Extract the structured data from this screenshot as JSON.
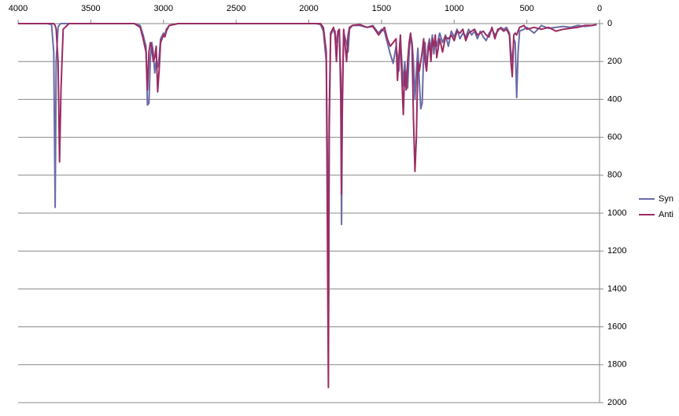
{
  "chart_data": {
    "type": "line",
    "x": [
      4000,
      3800,
      3770,
      3755,
      3745,
      3738,
      3725,
      3715,
      3705,
      3690,
      3650,
      3200,
      3160,
      3140,
      3120,
      3110,
      3100,
      3090,
      3080,
      3070,
      3060,
      3050,
      3040,
      3030,
      3020,
      3000,
      2990,
      2980,
      2960,
      2900,
      1950,
      1920,
      1900,
      1880,
      1870,
      1865,
      1860,
      1850,
      1830,
      1820,
      1810,
      1800,
      1790,
      1780,
      1775,
      1770,
      1760,
      1740,
      1730,
      1720,
      1700,
      1650,
      1600,
      1560,
      1520,
      1500,
      1480,
      1460,
      1440,
      1420,
      1400,
      1390,
      1380,
      1370,
      1360,
      1350,
      1340,
      1330,
      1320,
      1310,
      1300,
      1290,
      1280,
      1270,
      1260,
      1250,
      1240,
      1230,
      1220,
      1210,
      1200,
      1190,
      1180,
      1170,
      1160,
      1150,
      1140,
      1130,
      1120,
      1100,
      1080,
      1060,
      1040,
      1020,
      1000,
      980,
      960,
      940,
      920,
      900,
      880,
      860,
      840,
      820,
      800,
      780,
      760,
      740,
      720,
      700,
      680,
      660,
      640,
      620,
      610,
      600,
      590,
      580,
      570,
      560,
      550,
      520,
      500,
      450,
      400,
      350,
      300,
      250,
      200,
      150,
      100,
      50,
      20
    ],
    "series": [
      {
        "name": "Syn",
        "color": "#6a6ca6",
        "values": [
          0,
          0,
          5,
          150,
          970,
          200,
          20,
          5,
          0,
          0,
          0,
          0,
          10,
          60,
          120,
          430,
          420,
          180,
          100,
          150,
          260,
          200,
          230,
          180,
          80,
          50,
          60,
          30,
          10,
          0,
          0,
          5,
          40,
          200,
          850,
          1700,
          600,
          60,
          30,
          40,
          100,
          60,
          40,
          400,
          1060,
          500,
          50,
          100,
          150,
          30,
          10,
          10,
          20,
          10,
          50,
          30,
          40,
          100,
          160,
          210,
          120,
          170,
          250,
          80,
          200,
          330,
          200,
          300,
          340,
          150,
          60,
          100,
          200,
          400,
          250,
          130,
          300,
          450,
          420,
          150,
          100,
          250,
          120,
          80,
          150,
          60,
          160,
          80,
          120,
          50,
          100,
          60,
          120,
          40,
          70,
          30,
          80,
          50,
          70,
          30,
          60,
          40,
          80,
          40,
          70,
          90,
          50,
          30,
          60,
          40,
          20,
          30,
          20,
          50,
          150,
          200,
          80,
          100,
          390,
          150,
          40,
          30,
          20,
          50,
          10,
          25,
          20,
          15,
          20,
          10,
          15,
          10,
          5
        ]
      },
      {
        "name": "Anti",
        "color": "#9b2c63",
        "values": [
          0,
          0,
          0,
          0,
          10,
          30,
          200,
          730,
          350,
          30,
          0,
          0,
          20,
          80,
          150,
          350,
          150,
          100,
          130,
          200,
          180,
          120,
          360,
          250,
          100,
          60,
          70,
          40,
          10,
          0,
          0,
          0,
          20,
          150,
          1350,
          1920,
          500,
          50,
          20,
          60,
          200,
          40,
          30,
          300,
          900,
          400,
          30,
          200,
          60,
          20,
          10,
          5,
          20,
          15,
          60,
          40,
          20,
          80,
          120,
          100,
          80,
          300,
          180,
          60,
          280,
          480,
          250,
          350,
          200,
          100,
          50,
          120,
          500,
          780,
          600,
          200,
          250,
          200,
          150,
          80,
          200,
          250,
          150,
          100,
          200,
          80,
          120,
          60,
          180,
          80,
          150,
          70,
          80,
          60,
          90,
          40,
          50,
          30,
          90,
          50,
          40,
          30,
          60,
          50,
          40,
          60,
          70,
          20,
          80,
          30,
          25,
          40,
          30,
          60,
          200,
          280,
          60,
          50,
          60,
          40,
          20,
          10,
          30,
          20,
          30,
          20,
          40,
          30,
          25,
          20,
          10,
          10,
          5
        ]
      }
    ],
    "xlim": [
      4000,
      0
    ],
    "xticks": [
      4000,
      3500,
      3000,
      2500,
      2000,
      1500,
      1000,
      500,
      0
    ],
    "ylim": [
      2000,
      0
    ],
    "yticks": [
      0,
      200,
      400,
      600,
      800,
      1000,
      1200,
      1400,
      1600,
      1800,
      2000
    ],
    "grid": true,
    "legend": "right"
  }
}
